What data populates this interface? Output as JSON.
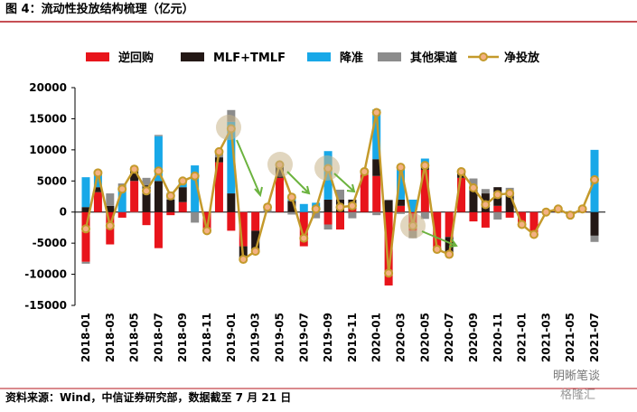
{
  "chart_data": {
    "type": "stacked-bar-line",
    "title": "图 4：流动性投放结构梳理（亿元）",
    "source": "资料来源：Wind，中信证券研究部，数据截至 7 月 21 日",
    "watermark": [
      "明晰笔谈",
      "格隆汇"
    ],
    "categories": [
      "2018-01",
      null,
      "2018-03",
      null,
      "2018-05",
      null,
      "2018-07",
      null,
      "2018-09",
      null,
      "2018-11",
      null,
      "2019-01",
      null,
      "2019-03",
      null,
      "2019-05",
      null,
      "2019-07",
      null,
      "2019-09",
      null,
      "2019-11",
      null,
      "2020-01",
      null,
      "2020-03",
      null,
      "2020-05",
      null,
      "2020-07",
      null,
      "2020-09",
      null,
      "2020-11",
      null,
      "2021-01",
      null,
      "2021-03",
      null,
      "2021-05",
      null,
      "2021-07"
    ],
    "series": [
      {
        "name": "逆回购",
        "kind": "bar",
        "color": "#e8141b",
        "values": [
          -8000,
          3200,
          -5200,
          -900,
          5000,
          -2100,
          -5800,
          -500,
          1600,
          0,
          -3000,
          8000,
          -3000,
          -5500,
          -3000,
          0,
          5500,
          0,
          -5500,
          0,
          -2000,
          -2800,
          500,
          6000,
          5800,
          -11800,
          1000,
          -3000,
          6800,
          -6000,
          -4000,
          5500,
          -1500,
          -2500,
          1000,
          -900,
          -2000,
          -3500,
          0,
          500,
          -500,
          500,
          0
        ]
      },
      {
        "name": "MLF+TMLF",
        "kind": "bar",
        "color": "#231815",
        "values": [
          800,
          800,
          1000,
          0,
          2000,
          4300,
          5000,
          2000,
          2400,
          0,
          0,
          800,
          3000,
          -2200,
          -3300,
          0,
          2000,
          1800,
          0,
          0,
          2000,
          2000,
          1500,
          0,
          2700,
          1900,
          1000,
          0,
          1000,
          0,
          -2800,
          1000,
          4000,
          3000,
          3000,
          3000,
          0,
          0,
          0,
          0,
          0,
          0,
          -3800
        ]
      },
      {
        "name": "降准",
        "kind": "bar",
        "color": "#18a8e8",
        "values": [
          4800,
          2300,
          0,
          4000,
          0,
          0,
          7200,
          0,
          1000,
          7500,
          0,
          0,
          11500,
          0,
          0,
          0,
          0,
          1000,
          1300,
          1500,
          7800,
          0,
          0,
          0,
          8000,
          0,
          5500,
          2000,
          800,
          0,
          0,
          0,
          0,
          0,
          0,
          0,
          0,
          0,
          0,
          0,
          0,
          0,
          10000
        ]
      },
      {
        "name": "其他渠道",
        "kind": "bar",
        "color": "#8c8c8c",
        "values": [
          -300,
          0,
          2000,
          600,
          -100,
          1200,
          200,
          1100,
          0,
          -1700,
          0,
          900,
          1900,
          100,
          0,
          800,
          100,
          -400,
          0,
          -1000,
          -800,
          1600,
          -1000,
          500,
          -500,
          100,
          -300,
          -1200,
          -1100,
          0,
          0,
          0,
          1400,
          700,
          -1200,
          900,
          0,
          -100,
          0,
          0,
          0,
          0,
          -1000
        ]
      },
      {
        "name": "净投放",
        "kind": "line",
        "color": "#c49a2b",
        "values": [
          -2700,
          6300,
          -2200,
          3700,
          6900,
          3400,
          6600,
          2600,
          5000,
          5800,
          -3000,
          9700,
          13400,
          -7600,
          -6300,
          800,
          7600,
          2400,
          -4200,
          500,
          7000,
          800,
          1000,
          6500,
          16000,
          -9800,
          7200,
          -2200,
          7500,
          -6000,
          -6800,
          6500,
          3900,
          1200,
          2800,
          3000,
          -2000,
          -3600,
          0,
          500,
          -500,
          500,
          5200
        ]
      }
    ],
    "ylim": [
      -15000,
      20000
    ],
    "yticks": [
      -15000,
      -10000,
      -5000,
      0,
      5000,
      10000,
      15000,
      20000
    ]
  }
}
